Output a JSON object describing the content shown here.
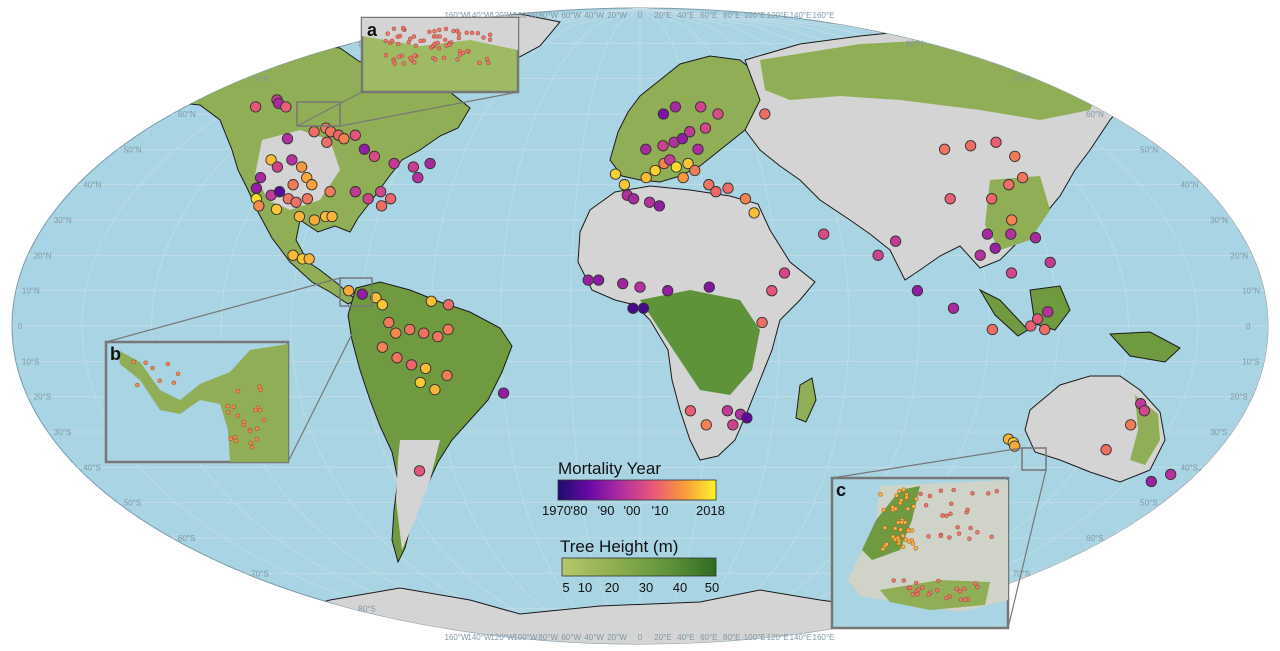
{
  "map": {
    "projection": "Robinson",
    "colors": {
      "ocean": "#a8d4e3",
      "land_bare": "#d4d4d4",
      "forest": "#7e9f46",
      "forest_dense": "#3e7a28",
      "borders": "#1a1a1a",
      "graticule": "#c6dce6"
    },
    "lat_labels": [
      "80°N",
      "70°N",
      "60°N",
      "50°N",
      "40°N",
      "30°N",
      "20°N",
      "10°N",
      "0",
      "10°S",
      "20°S",
      "30°S",
      "40°S",
      "50°S",
      "60°S",
      "70°S",
      "80°S"
    ],
    "lon_labels_top": [
      "160°W",
      "140°W",
      "120°W",
      "100°W",
      "80°W",
      "60°W",
      "40°W",
      "20°W",
      "0",
      "20°E",
      "40°E",
      "60°E",
      "80°E",
      "100°E",
      "120°E",
      "140°E",
      "160°E"
    ],
    "lon_labels_bottom": [
      "160°W",
      "140°W",
      "120°W",
      "100°W",
      "80°W",
      "60°W",
      "40°W",
      "20°W",
      "0",
      "20°E",
      "40°E",
      "60°E",
      "80°E",
      "100°E",
      "120°E",
      "140°E",
      "160°E"
    ]
  },
  "insets": [
    {
      "letter": "a"
    },
    {
      "letter": "b"
    },
    {
      "letter": "c"
    }
  ],
  "legend": {
    "mortality": {
      "title": "Mortality Year",
      "ticks": [
        "1970",
        "'80",
        "'90",
        "'00",
        "'10",
        "2018"
      ],
      "colors": [
        "#1b0c6b",
        "#6a0aa6",
        "#b02ea0",
        "#e9577a",
        "#f89a3c",
        "#fcf52a"
      ]
    },
    "height": {
      "title": "Tree Height (m)",
      "ticks": [
        "5",
        "10",
        "20",
        "30",
        "40",
        "50"
      ],
      "colors": [
        "#b5c86a",
        "#8cae4f",
        "#5f933a",
        "#2e6b22"
      ]
    }
  },
  "sites": [
    {
      "lon": -152,
      "lat": 62,
      "year": 1998
    },
    {
      "lon": -148,
      "lat": 64,
      "year": 1992
    },
    {
      "lon": -145,
      "lat": 63,
      "year": 1988
    },
    {
      "lon": -140,
      "lat": 62,
      "year": 2000
    },
    {
      "lon": -125,
      "lat": 53,
      "year": 1990
    },
    {
      "lon": -118,
      "lat": 55,
      "year": 2002
    },
    {
      "lon": -115,
      "lat": 56,
      "year": 2004
    },
    {
      "lon": -112,
      "lat": 55,
      "year": 2003
    },
    {
      "lon": -108,
      "lat": 54,
      "year": 2001
    },
    {
      "lon": -105,
      "lat": 53,
      "year": 2005
    },
    {
      "lon": -110,
      "lat": 52,
      "year": 2002
    },
    {
      "lon": -102,
      "lat": 54,
      "year": 1998
    },
    {
      "lon": -95,
      "lat": 50,
      "year": 1985
    },
    {
      "lon": -90,
      "lat": 48,
      "year": 1996
    },
    {
      "lon": -82,
      "lat": 46,
      "year": 1992
    },
    {
      "lon": -75,
      "lat": 45,
      "year": 1993
    },
    {
      "lon": -70,
      "lat": 46,
      "year": 1988
    },
    {
      "lon": -124,
      "lat": 47,
      "year": 2012
    },
    {
      "lon": -120,
      "lat": 45,
      "year": 1994
    },
    {
      "lon": -117,
      "lat": 47,
      "year": 1990
    },
    {
      "lon": -112,
      "lat": 45,
      "year": 2008
    },
    {
      "lon": -108,
      "lat": 42,
      "year": 2010
    },
    {
      "lon": -105,
      "lat": 40,
      "year": 2009
    },
    {
      "lon": -111,
      "lat": 40,
      "year": 2004
    },
    {
      "lon": -123,
      "lat": 42,
      "year": 1988
    },
    {
      "lon": -122,
      "lat": 39,
      "year": 1985
    },
    {
      "lon": -120,
      "lat": 36,
      "year": 2015
    },
    {
      "lon": -118,
      "lat": 34,
      "year": 2006
    },
    {
      "lon": -116,
      "lat": 37,
      "year": 1992
    },
    {
      "lon": -114,
      "lat": 38,
      "year": 1978
    },
    {
      "lon": -110,
      "lat": 36,
      "year": 2003
    },
    {
      "lon": -107,
      "lat": 35,
      "year": 2002
    },
    {
      "lon": -104,
      "lat": 36,
      "year": 2003
    },
    {
      "lon": -112,
      "lat": 33,
      "year": 2013
    },
    {
      "lon": -104,
      "lat": 31,
      "year": 2011
    },
    {
      "lon": -99,
      "lat": 30,
      "year": 2010
    },
    {
      "lon": -96,
      "lat": 31,
      "year": 2012
    },
    {
      "lon": -94,
      "lat": 31,
      "year": 2011
    },
    {
      "lon": -98,
      "lat": 38,
      "year": 2004
    },
    {
      "lon": -90,
      "lat": 38,
      "year": 1992
    },
    {
      "lon": -85,
      "lat": 36,
      "year": 1994
    },
    {
      "lon": -82,
      "lat": 38,
      "year": 1995
    },
    {
      "lon": -78,
      "lat": 36,
      "year": 2001
    },
    {
      "lon": -80,
      "lat": 34,
      "year": 2002
    },
    {
      "lon": -72,
      "lat": 42,
      "year": 1990
    },
    {
      "lon": -102,
      "lat": 20,
      "year": 2012
    },
    {
      "lon": -99,
      "lat": 19,
      "year": 2013
    },
    {
      "lon": -97,
      "lat": 19,
      "year": 2011
    },
    {
      "lon": -84,
      "lat": 10,
      "year": 2010
    },
    {
      "lon": -80,
      "lat": 9,
      "year": 1985
    },
    {
      "lon": -76,
      "lat": 8,
      "year": 2012
    },
    {
      "lon": -74,
      "lat": 6,
      "year": 2013
    },
    {
      "lon": -72,
      "lat": 1,
      "year": 2004
    },
    {
      "lon": -70,
      "lat": -2,
      "year": 2006
    },
    {
      "lon": -66,
      "lat": -1,
      "year": 2003
    },
    {
      "lon": -62,
      "lat": -2,
      "year": 2002
    },
    {
      "lon": -58,
      "lat": -3,
      "year": 2003
    },
    {
      "lon": -55,
      "lat": -1,
      "year": 2004
    },
    {
      "lon": -60,
      "lat": 7,
      "year": 2012
    },
    {
      "lon": -55,
      "lat": 6,
      "year": 2002
    },
    {
      "lon": -74,
      "lat": -6,
      "year": 2005
    },
    {
      "lon": -70,
      "lat": -9,
      "year": 2003
    },
    {
      "lon": -66,
      "lat": -11,
      "year": 2001
    },
    {
      "lon": -62,
      "lat": -12,
      "year": 2012
    },
    {
      "lon": -64,
      "lat": -16,
      "year": 2013
    },
    {
      "lon": -60,
      "lat": -18,
      "year": 2011
    },
    {
      "lon": -56,
      "lat": -14,
      "year": 2004
    },
    {
      "lon": -40,
      "lat": -19,
      "year": 1985
    },
    {
      "lon": -71,
      "lat": -41,
      "year": 1998
    },
    {
      "lon": -8,
      "lat": 43,
      "year": 2014
    },
    {
      "lon": -5,
      "lat": 40,
      "year": 2013
    },
    {
      "lon": -4,
      "lat": 37,
      "year": 1990
    },
    {
      "lon": 2,
      "lat": 42,
      "year": 2012
    },
    {
      "lon": 5,
      "lat": 44,
      "year": 2014
    },
    {
      "lon": 8,
      "lat": 46,
      "year": 2005
    },
    {
      "lon": 10,
      "lat": 47,
      "year": 1992
    },
    {
      "lon": 12,
      "lat": 45,
      "year": 2015
    },
    {
      "lon": 14,
      "lat": 42,
      "year": 2008
    },
    {
      "lon": 16,
      "lat": 46,
      "year": 2013
    },
    {
      "lon": 18,
      "lat": 44,
      "year": 2004
    },
    {
      "lon": 22,
      "lat": 40,
      "year": 2003
    },
    {
      "lon": 24,
      "lat": 38,
      "year": 2001
    },
    {
      "lon": 28,
      "lat": 39,
      "year": 2002
    },
    {
      "lon": 33,
      "lat": 36,
      "year": 2005
    },
    {
      "lon": 35,
      "lat": 32,
      "year": 2012
    },
    {
      "lon": 2,
      "lat": 50,
      "year": 1988
    },
    {
      "lon": 8,
      "lat": 51,
      "year": 1994
    },
    {
      "lon": 12,
      "lat": 52,
      "year": 1990
    },
    {
      "lon": 15,
      "lat": 53,
      "year": 1985
    },
    {
      "lon": 18,
      "lat": 55,
      "year": 1992
    },
    {
      "lon": 20,
      "lat": 50,
      "year": 1989
    },
    {
      "lon": 24,
      "lat": 56,
      "year": 1995
    },
    {
      "lon": 9,
      "lat": 60,
      "year": 1982
    },
    {
      "lon": 14,
      "lat": 62,
      "year": 1988
    },
    {
      "lon": 24,
      "lat": 62,
      "year": 1994
    },
    {
      "lon": 30,
      "lat": 60,
      "year": 1996
    },
    {
      "lon": 48,
      "lat": 60,
      "year": 2002
    },
    {
      "lon": -2,
      "lat": 36,
      "year": 1988
    },
    {
      "lon": 3,
      "lat": 35,
      "year": 1990
    },
    {
      "lon": 6,
      "lat": 34,
      "year": 1985
    },
    {
      "lon": -15,
      "lat": 13,
      "year": 1986
    },
    {
      "lon": -12,
      "lat": 13,
      "year": 1984
    },
    {
      "lon": -5,
      "lat": 12,
      "year": 1987
    },
    {
      "lon": 0,
      "lat": 11,
      "year": 1990
    },
    {
      "lon": 8,
      "lat": 10,
      "year": 1985
    },
    {
      "lon": 20,
      "lat": 11,
      "year": 1983
    },
    {
      "lon": -2,
      "lat": 5,
      "year": 1975
    },
    {
      "lon": 1,
      "lat": 5,
      "year": 1975
    },
    {
      "lon": 38,
      "lat": 10,
      "year": 1998
    },
    {
      "lon": 42,
      "lat": 15,
      "year": 1995
    },
    {
      "lon": 35,
      "lat": 1,
      "year": 2002
    },
    {
      "lon": 15,
      "lat": -24,
      "year": 2000
    },
    {
      "lon": 26,
      "lat": -24,
      "year": 1992
    },
    {
      "lon": 30,
      "lat": -25,
      "year": 1990
    },
    {
      "lon": 32,
      "lat": -26,
      "year": 1978
    },
    {
      "lon": 28,
      "lat": -28,
      "year": 1994
    },
    {
      "lon": 20,
      "lat": -28,
      "year": 2005
    },
    {
      "lon": 55,
      "lat": 26,
      "year": 1996
    },
    {
      "lon": 70,
      "lat": 20,
      "year": 1994
    },
    {
      "lon": 80,
      "lat": 10,
      "year": 1985
    },
    {
      "lon": 90,
      "lat": 5,
      "year": 1988
    },
    {
      "lon": 76,
      "lat": 24,
      "year": 1992
    },
    {
      "lon": 105,
      "lat": 50,
      "year": 2003
    },
    {
      "lon": 115,
      "lat": 51,
      "year": 2002
    },
    {
      "lon": 125,
      "lat": 52,
      "year": 2000
    },
    {
      "lon": 127,
      "lat": 48,
      "year": 2004
    },
    {
      "lon": 124,
      "lat": 42,
      "year": 2003
    },
    {
      "lon": 118,
      "lat": 40,
      "year": 2002
    },
    {
      "lon": 110,
      "lat": 36,
      "year": 2001
    },
    {
      "lon": 97,
      "lat": 36,
      "year": 2000
    },
    {
      "lon": 113,
      "lat": 30,
      "year": 2005
    },
    {
      "lon": 118,
      "lat": 25,
      "year": 1988
    },
    {
      "lon": 111,
      "lat": 26,
      "year": 1990
    },
    {
      "lon": 104,
      "lat": 26,
      "year": 1988
    },
    {
      "lon": 105,
      "lat": 22,
      "year": 1986
    },
    {
      "lon": 100,
      "lat": 20,
      "year": 1990
    },
    {
      "lon": 108,
      "lat": 15,
      "year": 1995
    },
    {
      "lon": 120,
      "lat": 18,
      "year": 1992
    },
    {
      "lon": 112,
      "lat": 0,
      "year": 2000
    },
    {
      "lon": 114,
      "lat": 2,
      "year": 1998
    },
    {
      "lon": 116,
      "lat": -1,
      "year": 2002
    },
    {
      "lon": 117,
      "lat": 4,
      "year": 1990
    },
    {
      "lon": 101,
      "lat": -1,
      "year": 2002
    },
    {
      "lon": 113,
      "lat": -32,
      "year": 2011
    },
    {
      "lon": 115,
      "lat": -33,
      "year": 2013
    },
    {
      "lon": 116,
      "lat": -34,
      "year": 2010
    },
    {
      "lon": 148,
      "lat": -22,
      "year": 1992
    },
    {
      "lon": 150,
      "lat": -24,
      "year": 1995
    },
    {
      "lon": 148,
      "lat": -28,
      "year": 2004
    },
    {
      "lon": 145,
      "lat": -35,
      "year": 2002
    },
    {
      "lon": 168,
      "lat": -44,
      "year": 1986
    },
    {
      "lon": 172,
      "lat": -42,
      "year": 1990
    }
  ]
}
